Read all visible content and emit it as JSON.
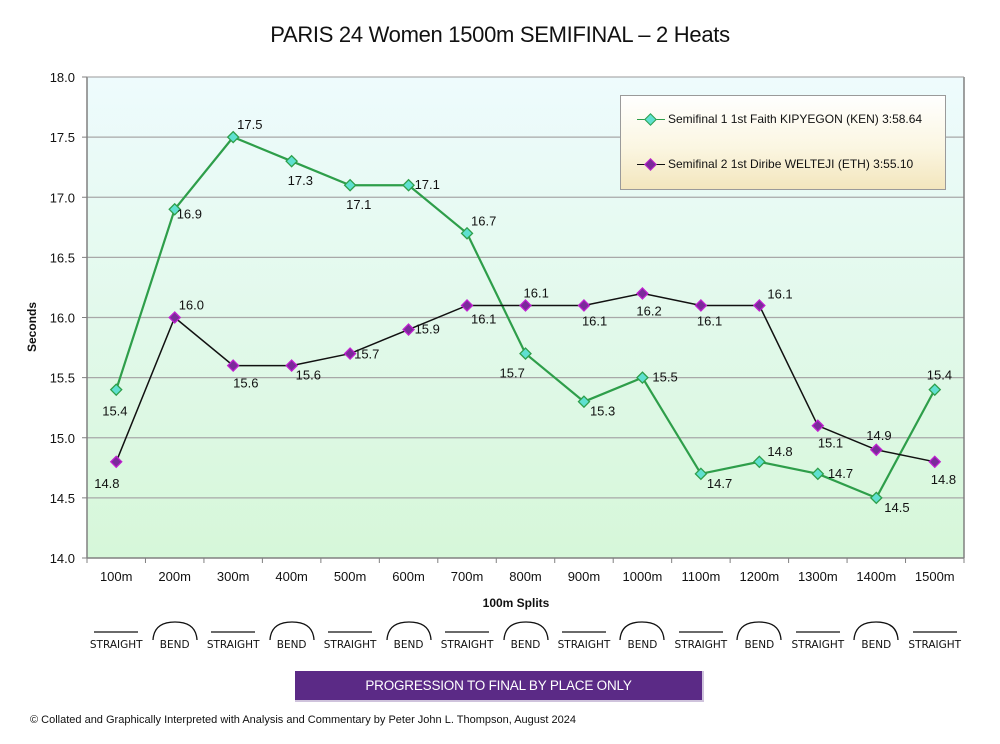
{
  "chart_data": {
    "type": "line",
    "title": "PARIS 24 Women 1500m SEMIFINAL – 2 Heats",
    "xlabel": "100m Splits",
    "ylabel": "Seconds",
    "ylim": [
      14.0,
      18.0
    ],
    "yticks": [
      "14.0",
      "14.5",
      "15.0",
      "15.5",
      "16.0",
      "16.5",
      "17.0",
      "17.5",
      "18.0"
    ],
    "grid": true,
    "legend_position": "top-right",
    "categories": [
      "100m",
      "200m",
      "300m",
      "400m",
      "500m",
      "600m",
      "700m",
      "800m",
      "900m",
      "1000m",
      "1100m",
      "1200m",
      "1300m",
      "1400m",
      "1500m"
    ],
    "series": [
      {
        "name": "Semifinal 1 1st Faith KIPYEGON (KEN) 3:58.64",
        "line_color": "#2e9e4a",
        "marker_fill": "#5fe0d0",
        "marker_border": "#2e9e4a",
        "values": [
          15.4,
          16.9,
          17.5,
          17.3,
          17.1,
          17.1,
          16.7,
          15.7,
          15.3,
          15.5,
          14.7,
          14.8,
          14.7,
          14.5,
          15.4
        ]
      },
      {
        "name": "Semifinal 2 1st Diribe WELTEJI (ETH) 3:55.10",
        "line_color": "#111111",
        "marker_fill": "#7a2a9a",
        "marker_border": "#c020d0",
        "values": [
          14.8,
          16.0,
          15.6,
          15.6,
          15.7,
          15.9,
          16.1,
          16.1,
          16.1,
          16.2,
          16.1,
          16.1,
          15.1,
          14.9,
          14.8
        ]
      }
    ]
  },
  "track_segments": [
    "STRAIGHT",
    "BEND",
    "STRAIGHT",
    "BEND",
    "STRAIGHT",
    "BEND",
    "STRAIGHT",
    "BEND",
    "STRAIGHT",
    "BEND",
    "STRAIGHT",
    "BEND",
    "STRAIGHT",
    "BEND",
    "STRAIGHT"
  ],
  "banner": {
    "text": "PROGRESSION TO FINAL BY PLACE ONLY",
    "color": "#5b2a86"
  },
  "credit": "© Collated and Graphically Interpreted with Analysis and Commentary by Peter John L. Thompson, August 2024"
}
